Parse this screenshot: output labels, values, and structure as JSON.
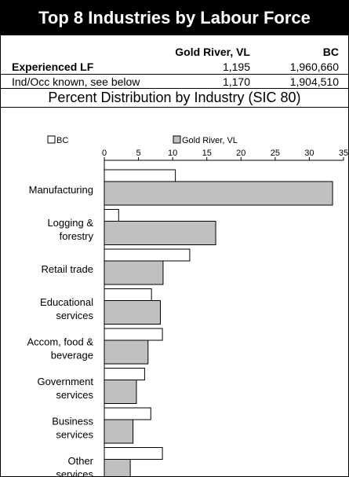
{
  "header": {
    "title": "Top 8 Industries by Labour Force"
  },
  "table": {
    "columns": [
      "Gold River, VL",
      "BC"
    ],
    "rows": [
      [
        "Experienced LF",
        "1,195",
        "1,960,660"
      ],
      [
        "Ind/Occ known, see below",
        "1,170",
        "1,904,510"
      ]
    ]
  },
  "chart_data": {
    "type": "bar",
    "orientation": "horizontal",
    "title": "Percent Distribution by Industry (SIC 80)",
    "categories": [
      [
        "Manufacturing"
      ],
      [
        "Logging &",
        "forestry"
      ],
      [
        "Retail trade"
      ],
      [
        "Educational",
        "services"
      ],
      [
        "Accom, food &",
        "beverage"
      ],
      [
        "Government",
        "services"
      ],
      [
        "Business",
        "services"
      ],
      [
        "Other",
        "services"
      ]
    ],
    "series": [
      {
        "name": "BC",
        "color": "#ffffff",
        "values": [
          10.4,
          2.1,
          12.5,
          6.9,
          8.5,
          5.9,
          6.8,
          8.5
        ]
      },
      {
        "name": "Gold River, VL",
        "color": "#c0c0c0",
        "values": [
          33.4,
          16.3,
          8.6,
          8.2,
          6.4,
          4.7,
          4.2,
          3.8
        ]
      }
    ],
    "xlim": [
      0,
      35
    ],
    "xticks": [
      0,
      5,
      10,
      15,
      20,
      25,
      30,
      35
    ]
  }
}
